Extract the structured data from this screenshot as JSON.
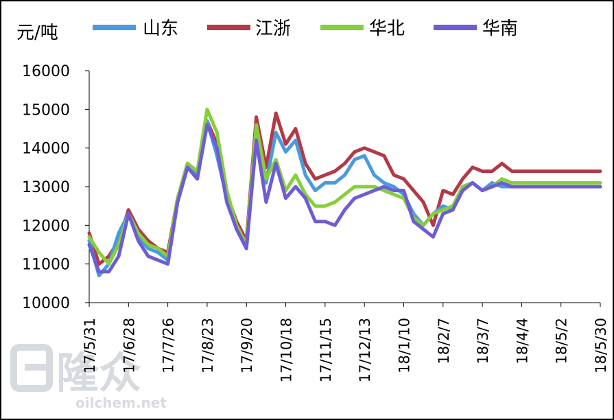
{
  "chart_data": {
    "type": "line",
    "ylabel": "元/吨",
    "ylim": [
      10000,
      16000
    ],
    "yticks": [
      "10000",
      "11000",
      "12000",
      "13000",
      "14000",
      "15000",
      "16000"
    ],
    "xticks": [
      "17/5/31",
      "17/6/28",
      "17/7/26",
      "17/8/23",
      "17/9/20",
      "17/10/18",
      "17/11/15",
      "17/12/13",
      "18/1/10",
      "18/2/7",
      "18/3/7",
      "18/4/4",
      "18/5/2",
      "18/5/30"
    ],
    "x": [
      "17/5/31",
      "17/6/7",
      "17/6/14",
      "17/6/21",
      "17/6/28",
      "17/7/5",
      "17/7/12",
      "17/7/19",
      "17/7/26",
      "17/8/2",
      "17/8/9",
      "17/8/16",
      "17/8/23",
      "17/8/30",
      "17/9/6",
      "17/9/13",
      "17/9/20",
      "17/9/27",
      "17/10/4",
      "17/10/11",
      "17/10/18",
      "17/10/25",
      "17/11/1",
      "17/11/8",
      "17/11/15",
      "17/11/22",
      "17/11/29",
      "17/12/6",
      "17/12/13",
      "17/12/20",
      "17/12/27",
      "18/1/3",
      "18/1/10",
      "18/1/17",
      "18/1/24",
      "18/1/31",
      "18/2/7",
      "18/2/14",
      "18/2/21",
      "18/2/28",
      "18/3/7",
      "18/3/14",
      "18/3/21",
      "18/3/28",
      "18/4/4",
      "18/4/11",
      "18/4/18",
      "18/4/25",
      "18/5/2",
      "18/5/9",
      "18/5/16",
      "18/5/23",
      "18/5/30"
    ],
    "series": [
      {
        "name": "山东",
        "color": "#4a9ae0",
        "values": [
          11600,
          10700,
          11000,
          11800,
          12300,
          11700,
          11400,
          11300,
          11100,
          12600,
          13500,
          13300,
          14700,
          13800,
          12700,
          11900,
          11400,
          14500,
          13100,
          14400,
          13900,
          14200,
          13300,
          12900,
          13100,
          13100,
          13300,
          13700,
          13800,
          13300,
          13100,
          13000,
          12800,
          12300,
          12000,
          12300,
          12500,
          12400,
          13000,
          13100,
          12900,
          13100,
          13000,
          13000,
          13000,
          13000,
          13000,
          13000,
          13000,
          13000,
          13000,
          13000,
          13000
        ]
      },
      {
        "name": "江浙",
        "color": "#b23a48",
        "values": [
          11800,
          11000,
          11200,
          11600,
          12400,
          11900,
          11600,
          11400,
          11300,
          12700,
          13600,
          13300,
          14700,
          14100,
          12800,
          12100,
          11600,
          14800,
          13500,
          14900,
          14100,
          14500,
          13600,
          13200,
          13300,
          13400,
          13600,
          13900,
          14000,
          13900,
          13800,
          13300,
          13200,
          12900,
          12600,
          12000,
          12900,
          12800,
          13200,
          13500,
          13400,
          13400,
          13600,
          13400,
          13400,
          13400,
          13400,
          13400,
          13400,
          13400,
          13400,
          13400,
          13400
        ]
      },
      {
        "name": "华北",
        "color": "#86cf3a",
        "values": [
          11700,
          11300,
          11000,
          11500,
          12300,
          11800,
          11500,
          11400,
          11200,
          12700,
          13600,
          13400,
          15000,
          14400,
          12900,
          12000,
          11500,
          14600,
          13200,
          13700,
          12900,
          13300,
          12800,
          12500,
          12500,
          12600,
          12800,
          13000,
          13000,
          13000,
          12900,
          12800,
          12700,
          12200,
          12000,
          12300,
          12400,
          12500,
          13000,
          13100,
          12900,
          13000,
          13200,
          13100,
          13100,
          13100,
          13100,
          13100,
          13100,
          13100,
          13100,
          13100,
          13100
        ]
      },
      {
        "name": "华南",
        "color": "#6e5cd6",
        "values": [
          11500,
          10800,
          10800,
          11200,
          12300,
          11600,
          11200,
          11100,
          11000,
          12600,
          13500,
          13200,
          14600,
          14000,
          12600,
          11900,
          11400,
          14200,
          12600,
          13600,
          12700,
          13000,
          12700,
          12100,
          12100,
          12000,
          12400,
          12700,
          12800,
          12900,
          13000,
          12900,
          12900,
          12100,
          11900,
          11700,
          12300,
          12400,
          12900,
          13100,
          12900,
          13000,
          13100,
          13000,
          13000,
          13000,
          13000,
          13000,
          13000,
          13000,
          13000,
          13000,
          13000
        ]
      }
    ]
  },
  "watermark": {
    "logo_text": "隆众",
    "url": "oilchem.net"
  }
}
